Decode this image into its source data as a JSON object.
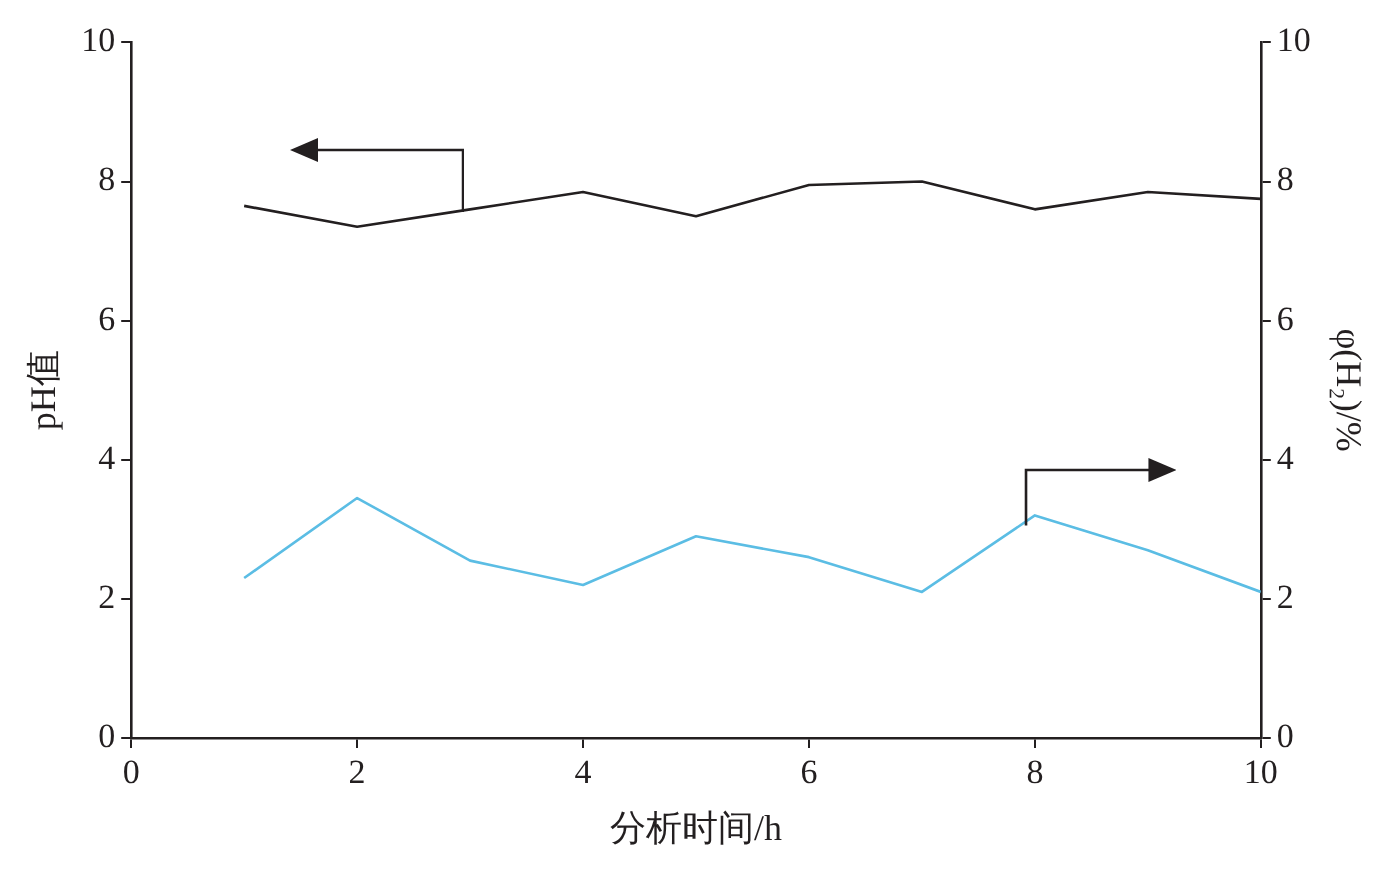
{
  "chart_data": {
    "type": "line",
    "xlabel": "分析时间/h",
    "ylabel": "pH值",
    "y2label": "φ(H₂)/%",
    "x": [
      1,
      2,
      3,
      4,
      5,
      6,
      7,
      8,
      9,
      10
    ],
    "series": [
      {
        "color": "#231f20",
        "values": [
          7.65,
          7.35,
          7.6,
          7.85,
          7.5,
          7.95,
          8.0,
          7.6,
          7.85,
          7.75
        ]
      },
      {
        "color": "#5bbde4",
        "axis": "y2",
        "values": [
          2.3,
          3.45,
          2.55,
          2.2,
          2.9,
          2.6,
          2.1,
          3.2,
          2.7,
          2.1
        ]
      }
    ],
    "xlim": [
      0,
      10
    ],
    "xticks": [
      0,
      2,
      4,
      6,
      8,
      10
    ],
    "ylim": [
      0,
      10
    ],
    "yticks": [
      0,
      2,
      4,
      6,
      8,
      10
    ],
    "y2lim": [
      0,
      10
    ],
    "y2ticks": [
      0,
      2,
      4,
      6,
      8,
      10
    ],
    "grid": false,
    "legend": false,
    "marker": "none",
    "line_style": "solid"
  }
}
